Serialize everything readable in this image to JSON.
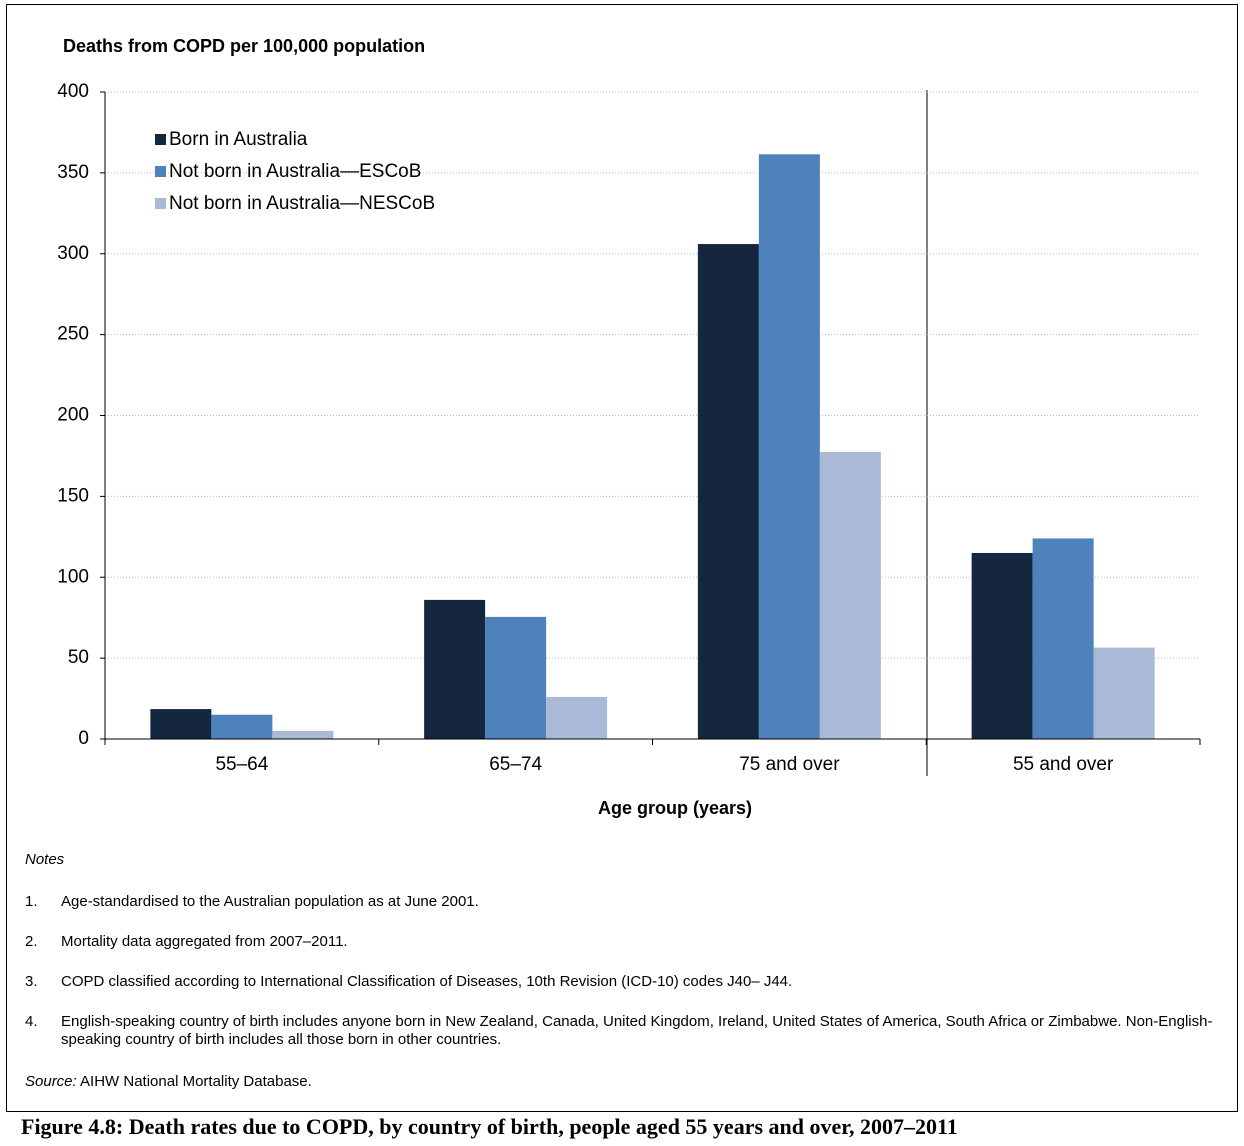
{
  "chart_data": {
    "type": "bar",
    "ylabel": "Deaths from COPD per 100,000 population",
    "xlabel": "Age group (years)",
    "categories": [
      "55–64",
      "65–74",
      "75 and over",
      "55 and over"
    ],
    "series": [
      {
        "name": "Born in Australia",
        "color": "#14273f",
        "values": [
          18.5,
          86,
          306,
          115
        ]
      },
      {
        "name": "Not born in Australia—ESCoB",
        "color": "#4f81bd",
        "values": [
          15,
          75.5,
          361.5,
          124
        ]
      },
      {
        "name": "Not born in Australia—NESCoB",
        "color": "#aab9d6",
        "values": [
          5,
          26,
          177.5,
          56.5
        ]
      }
    ],
    "ylim": [
      0,
      400
    ],
    "yticks": [
      0,
      50,
      100,
      150,
      200,
      250,
      300,
      350,
      400
    ],
    "grid": true,
    "legend": "upper left"
  },
  "notes": {
    "title": "Notes",
    "items": [
      {
        "number": "1.",
        "text": "Age-standardised to the Australian population as at June 2001."
      },
      {
        "number": "2.",
        "text": "Mortality data aggregated from 2007–2011."
      },
      {
        "number": "3.",
        "text": "COPD classified according to International Classification of Diseases, 10th Revision (ICD-10) codes J40– J44."
      },
      {
        "number": "4.",
        "text": "English-speaking country of birth includes anyone born in New Zealand, Canada, United Kingdom, Ireland, United States of America, South Africa or Zimbabwe. Non-English-speaking country of birth includes all those born in other countries."
      }
    ]
  },
  "source": {
    "label": "Source:",
    "text": "AIHW National Mortality Database."
  },
  "caption": "Figure 4.8: Death rates due to COPD, by country of birth, people aged 55 years and over, 2007–2011"
}
